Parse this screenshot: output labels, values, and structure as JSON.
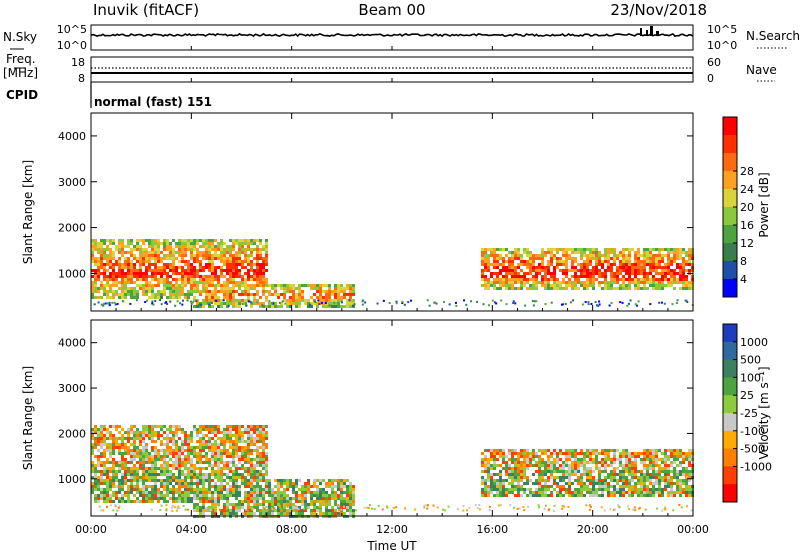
{
  "header": {
    "station": "Inuvik (fitACF)",
    "beam": "Beam 00",
    "date": "23/Nov/2018"
  },
  "panels": {
    "nsky_label": "N.Sky",
    "nsearch_label": "N.Search",
    "freq_label": "Freq.",
    "freq_unit": "[MHz]",
    "nave_label": "Nave",
    "cpid_label": "CPID",
    "cpid_value": "normal (fast) 151",
    "noise_left_ticks": [
      "10^5",
      "10^0"
    ],
    "noise_right_ticks": [
      "10^5",
      "10^0"
    ],
    "freq_left_ticks": [
      "18",
      "8"
    ],
    "nave_right_ticks": [
      "60",
      "0"
    ]
  },
  "chart_data": [
    {
      "type": "heatmap",
      "name": "power",
      "ylabel": "Slant Range [km]",
      "ylim": [
        180,
        4500
      ],
      "yticks": [
        "1000",
        "2000",
        "3000",
        "4000"
      ],
      "xlim": [
        0,
        24
      ],
      "colorbar": {
        "label": "Power [dB]",
        "ticks": [
          "4",
          "8",
          "12",
          "16",
          "20",
          "24",
          "28"
        ],
        "colors": [
          "#0000ff",
          "#1f4fa6",
          "#3c7d4f",
          "#4ca340",
          "#8cc83c",
          "#dcd23c",
          "#ffa022",
          "#ff6a10",
          "#ff3000",
          "#ff0000"
        ]
      },
      "regions": [
        {
          "t0": 0.0,
          "t1": 7.0,
          "r0": 500,
          "r1": 1800,
          "level": 0.8
        },
        {
          "t0": 0.0,
          "t1": 7.0,
          "r0": 800,
          "r1": 1300,
          "level": 0.95
        },
        {
          "t0": 4.0,
          "t1": 10.5,
          "r0": 300,
          "r1": 800,
          "level": 0.75
        },
        {
          "t0": 15.5,
          "t1": 24.0,
          "r0": 700,
          "r1": 1600,
          "level": 0.85
        },
        {
          "t0": 15.5,
          "t1": 24.0,
          "r0": 800,
          "r1": 1200,
          "level": 0.97
        }
      ]
    },
    {
      "type": "heatmap",
      "name": "velocity",
      "ylabel": "Slant Range [km]",
      "ylim": [
        180,
        4500
      ],
      "yticks": [
        "1000",
        "2000",
        "3000",
        "4000"
      ],
      "xlabel": "Time UT",
      "xticks": [
        "00:00",
        "04:00",
        "08:00",
        "12:00",
        "16:00",
        "20:00",
        "00:00"
      ],
      "xlim": [
        0,
        24
      ],
      "colorbar": {
        "label": "Velocity [m s⁻¹]",
        "ticks": [
          "1000",
          "500",
          "100",
          "25",
          "-25",
          "-100",
          "-500",
          "-1000"
        ],
        "colors": [
          "#1e3cbe",
          "#2e6aa0",
          "#3c8060",
          "#4ca340",
          "#8ccc3c",
          "#c8c8c8",
          "#ffaa00",
          "#ff8000",
          "#ff4000",
          "#ff0000"
        ]
      },
      "regions": [
        {
          "t0": 0.0,
          "t1": 7.0,
          "r0": 500,
          "r1": 2200,
          "level": 0.7
        },
        {
          "t0": 4.0,
          "t1": 10.5,
          "r0": 200,
          "r1": 1000,
          "level": 0.45
        },
        {
          "t0": 15.5,
          "t1": 24.0,
          "r0": 600,
          "r1": 1700,
          "level": 0.75
        }
      ]
    }
  ]
}
